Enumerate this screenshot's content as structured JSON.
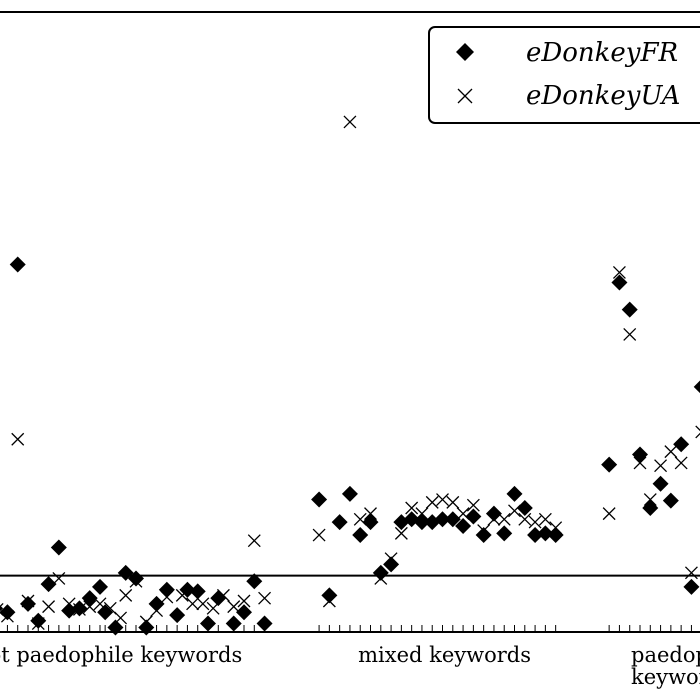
{
  "chart_data": {
    "type": "scatter",
    "title": "",
    "xlabel": "",
    "ylabel": "",
    "grid": false,
    "legend_position": "top-right",
    "threshold_line_y": 1,
    "ylim": [
      0,
      11
    ],
    "xlim": [
      0,
      70
    ],
    "group_labels": [
      {
        "text": "ot paedophile keywords",
        "x": 12
      },
      {
        "text": "mixed keywords",
        "x": 44
      },
      {
        "text": "paedop",
        "x": 66.5
      },
      {
        "text": "keywor",
        "x": 66.5
      }
    ],
    "series": [
      {
        "name": "eDonkeyFR",
        "marker": "diamond",
        "points": [
          [
            0.3,
            0.42
          ],
          [
            1.5,
            0.35
          ],
          [
            2.5,
            6.52
          ],
          [
            3.5,
            0.5
          ],
          [
            4.5,
            0.2
          ],
          [
            5.5,
            0.85
          ],
          [
            6.5,
            1.5
          ],
          [
            7.5,
            0.38
          ],
          [
            8.5,
            0.42
          ],
          [
            9.5,
            0.6
          ],
          [
            10.5,
            0.8
          ],
          [
            11,
            0.35
          ],
          [
            12,
            0.08
          ],
          [
            13,
            1.05
          ],
          [
            14,
            0.95
          ],
          [
            15,
            0.08
          ],
          [
            16,
            0.5
          ],
          [
            17,
            0.75
          ],
          [
            18,
            0.3
          ],
          [
            19,
            0.75
          ],
          [
            20,
            0.72
          ],
          [
            21,
            0.15
          ],
          [
            22,
            0.6
          ],
          [
            23.5,
            0.15
          ],
          [
            24.5,
            0.35
          ],
          [
            25.5,
            0.9
          ],
          [
            26.5,
            0.15
          ],
          [
            31.8,
            2.35
          ],
          [
            32.8,
            0.65
          ],
          [
            33.8,
            1.95
          ],
          [
            34.8,
            2.45
          ],
          [
            35.8,
            1.72
          ],
          [
            36.8,
            1.95
          ],
          [
            37.8,
            1.05
          ],
          [
            38.8,
            1.2
          ],
          [
            39.8,
            1.95
          ],
          [
            40.8,
            2.0
          ],
          [
            41.8,
            1.95
          ],
          [
            42.8,
            1.95
          ],
          [
            43.8,
            2.0
          ],
          [
            44.8,
            2.0
          ],
          [
            45.8,
            1.88
          ],
          [
            46.8,
            2.05
          ],
          [
            47.8,
            1.72
          ],
          [
            48.8,
            2.1
          ],
          [
            49.8,
            1.75
          ],
          [
            50.8,
            2.45
          ],
          [
            51.8,
            2.2
          ],
          [
            52.8,
            1.72
          ],
          [
            53.8,
            1.75
          ],
          [
            54.8,
            1.72
          ],
          [
            60,
            2.97
          ],
          [
            61,
            6.2
          ],
          [
            62,
            5.72
          ],
          [
            63,
            3.15
          ],
          [
            64,
            2.2
          ],
          [
            65,
            2.63
          ],
          [
            66,
            2.33
          ],
          [
            67,
            3.33
          ],
          [
            68,
            0.8
          ],
          [
            69,
            4.35
          ],
          [
            69.8,
            2.45
          ]
        ]
      },
      {
        "name": "eDonkeyUA",
        "marker": "cross",
        "points": [
          [
            0.5,
            0.4
          ],
          [
            1.5,
            0.28
          ],
          [
            2.5,
            3.42
          ],
          [
            3.5,
            0.55
          ],
          [
            4.5,
            0.15
          ],
          [
            5.5,
            0.45
          ],
          [
            6.5,
            0.95
          ],
          [
            7.5,
            0.5
          ],
          [
            8.5,
            0.4
          ],
          [
            9.5,
            0.45
          ],
          [
            10.5,
            0.5
          ],
          [
            11.5,
            0.42
          ],
          [
            12.5,
            0.25
          ],
          [
            13,
            0.65
          ],
          [
            14,
            0.9
          ],
          [
            15,
            0.18
          ],
          [
            16,
            0.38
          ],
          [
            17,
            0.62
          ],
          [
            18.5,
            0.65
          ],
          [
            19.5,
            0.5
          ],
          [
            20.5,
            0.5
          ],
          [
            21.5,
            0.42
          ],
          [
            22.5,
            0.65
          ],
          [
            23.5,
            0.45
          ],
          [
            24.5,
            0.55
          ],
          [
            25.5,
            1.62
          ],
          [
            26.5,
            0.6
          ],
          [
            31.8,
            1.72
          ],
          [
            32.8,
            0.55
          ],
          [
            34.8,
            9.05
          ],
          [
            35.8,
            2.0
          ],
          [
            36.8,
            2.1
          ],
          [
            37.8,
            0.95
          ],
          [
            38.8,
            1.3
          ],
          [
            39.8,
            1.75
          ],
          [
            40.8,
            2.2
          ],
          [
            41.8,
            2.1
          ],
          [
            42.8,
            2.3
          ],
          [
            43.8,
            2.35
          ],
          [
            44.8,
            2.3
          ],
          [
            45.8,
            2.1
          ],
          [
            46.8,
            2.25
          ],
          [
            47.8,
            1.8
          ],
          [
            48.8,
            2.0
          ],
          [
            49.8,
            2.0
          ],
          [
            50.8,
            2.15
          ],
          [
            51.8,
            2.0
          ],
          [
            52.8,
            1.95
          ],
          [
            53.8,
            2.0
          ],
          [
            54.8,
            1.85
          ],
          [
            60,
            2.1
          ],
          [
            61,
            6.38
          ],
          [
            62,
            5.28
          ],
          [
            63,
            3.0
          ],
          [
            64,
            2.35
          ],
          [
            65,
            2.95
          ],
          [
            66,
            3.2
          ],
          [
            67,
            3.0
          ],
          [
            68,
            1.05
          ],
          [
            69,
            3.55
          ],
          [
            69.8,
            2.0
          ]
        ]
      }
    ]
  }
}
